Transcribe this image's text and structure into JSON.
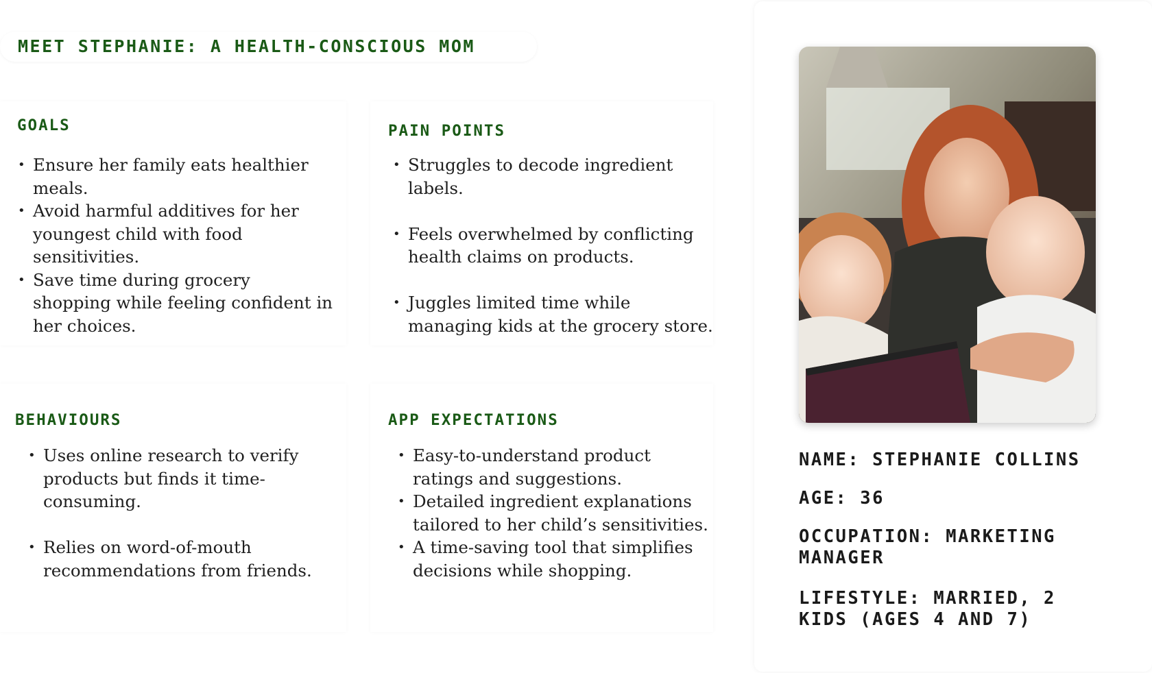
{
  "title": "MEET STEPHANIE: A HEALTH-CONSCIOUS MOM",
  "accent_color": "#1a5a16",
  "goals": {
    "heading": "GOALS",
    "items": [
      "Ensure her family eats healthier meals.",
      "Avoid harmful additives for her youngest child with food sensitivities.",
      "Save time during grocery shopping while feeling confident in her choices."
    ]
  },
  "pain_points": {
    "heading": "PAIN POINTS",
    "items": [
      "Struggles to decode ingredient labels.",
      "Feels overwhelmed by conflicting health claims on products.",
      "Juggles limited time while managing kids at the grocery store."
    ]
  },
  "behaviours": {
    "heading": "BEHAVIOURS",
    "items": [
      "Uses online research to verify products but finds it time-consuming.",
      "Relies on word-of-mouth recommendations from friends."
    ]
  },
  "app_expectations": {
    "heading": "APP EXPECTATIONS",
    "items": [
      "Easy-to-understand product ratings and suggestions.",
      "Detailed ingredient explanations tailored to her child’s sensitivities.",
      "A time-saving tool that simplifies decisions while shopping."
    ]
  },
  "profile": {
    "name": "NAME: STEPHANIE COLLINS",
    "age": "AGE: 36",
    "occupation": "OCCUPATION: MARKETING MANAGER",
    "lifestyle": "LIFESTYLE: MARRIED, 2 KIDS (AGES 4 AND 7)"
  }
}
